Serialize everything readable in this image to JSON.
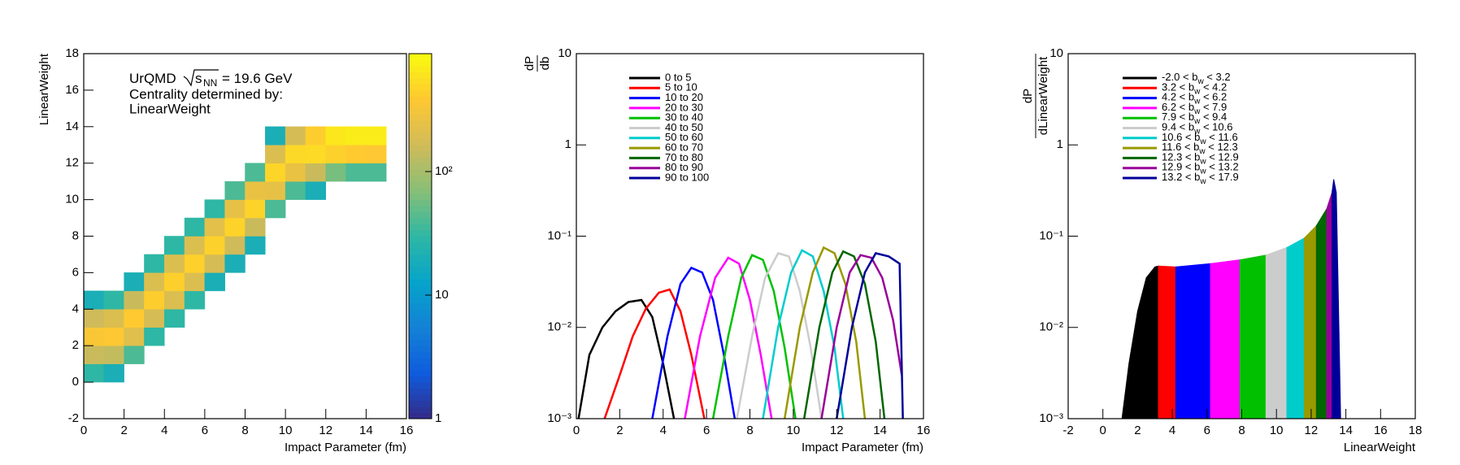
{
  "chart_data": [
    {
      "type": "heatmap",
      "xlabel": "Impact Parameter (fm)",
      "ylabel": "LinearWeight",
      "xlim": [
        0,
        16
      ],
      "xticks": [
        0,
        2,
        4,
        6,
        8,
        10,
        12,
        14,
        16
      ],
      "ylim": [
        -2,
        18
      ],
      "yticks": [
        -2,
        0,
        2,
        4,
        6,
        8,
        10,
        12,
        14,
        16,
        18
      ],
      "zlog": true,
      "zlim": [
        1,
        900
      ],
      "zticks": [
        1,
        10,
        {
          "value": 100,
          "label": "10²"
        }
      ],
      "palette": [
        "#352a87",
        "#0f5cdd",
        "#1481d6",
        "#06a4ca",
        "#2eb7a4",
        "#87bf77",
        "#d1bb59",
        "#fec832",
        "#f9fb0e"
      ],
      "label_system": "UrQMD",
      "label_energy_symbol": "s",
      "label_energy_sub": "NN",
      "label_energy_value": "= 19.6 GeV",
      "label_lines": [
        "Centrality determined by:",
        "LinearWeight"
      ],
      "columns": [
        {
          "x": [
            0,
            1
          ],
          "y": [
            0,
            5
          ],
          "z": [
            30,
            150,
            350,
            160,
            20
          ]
        },
        {
          "x": [
            1,
            2
          ],
          "y": [
            0,
            5
          ],
          "z": [
            20,
            140,
            380,
            200,
            30
          ]
        },
        {
          "x": [
            2,
            3
          ],
          "y": [
            1,
            6
          ],
          "z": [
            40,
            220,
            400,
            150,
            20
          ]
        },
        {
          "x": [
            3,
            4
          ],
          "y": [
            2,
            7
          ],
          "z": [
            30,
            180,
            420,
            200,
            30
          ]
        },
        {
          "x": [
            4,
            5
          ],
          "y": [
            3,
            8
          ],
          "z": [
            30,
            200,
            430,
            200,
            30
          ]
        },
        {
          "x": [
            5,
            6
          ],
          "y": [
            4,
            9
          ],
          "z": [
            30,
            200,
            440,
            200,
            30
          ]
        },
        {
          "x": [
            6,
            7
          ],
          "y": [
            5,
            10
          ],
          "z": [
            20,
            180,
            450,
            230,
            30
          ]
        },
        {
          "x": [
            7,
            8
          ],
          "y": [
            6,
            11
          ],
          "z": [
            20,
            160,
            460,
            250,
            40
          ]
        },
        {
          "x": [
            8,
            9
          ],
          "y": [
            7,
            12
          ],
          "z": [
            20,
            150,
            460,
            260,
            40
          ]
        },
        {
          "x": [
            9,
            10
          ],
          "y": [
            9,
            14
          ],
          "z": [
            40,
            250,
            480,
            200,
            20
          ]
        },
        {
          "x": [
            10,
            11
          ],
          "y": [
            10,
            14
          ],
          "z": [
            40,
            260,
            500,
            180
          ]
        },
        {
          "x": [
            11,
            12
          ],
          "y": [
            10,
            14
          ],
          "z": [
            20,
            150,
            520,
            420
          ]
        },
        {
          "x": [
            12,
            13
          ],
          "y": [
            11,
            14
          ],
          "z": [
            60,
            450,
            650
          ]
        },
        {
          "x": [
            13,
            14
          ],
          "y": [
            11,
            14
          ],
          "z": [
            40,
            400,
            700
          ]
        },
        {
          "x": [
            14,
            15
          ],
          "y": [
            11,
            14
          ],
          "z": [
            40,
            380,
            700
          ]
        }
      ]
    },
    {
      "type": "line",
      "xlabel": "Impact Parameter (fm)",
      "ylabel": {
        "numerator": "dP",
        "denominator": "db"
      },
      "xlim": [
        0,
        16
      ],
      "xticks": [
        0,
        2,
        4,
        6,
        8,
        10,
        12,
        14,
        16
      ],
      "ylog": true,
      "ylim": [
        0.001,
        10
      ],
      "yticks": [
        {
          "value": 0.001,
          "label": "10⁻³"
        },
        {
          "value": 0.01,
          "label": "10⁻²"
        },
        {
          "value": 0.1,
          "label": "10⁻¹"
        },
        1,
        10
      ],
      "series": [
        {
          "name": "0 to 5",
          "color": "#000000",
          "x": [
            0.1,
            0.6,
            1.2,
            1.8,
            2.4,
            3,
            3.5,
            4,
            4.5
          ],
          "values": [
            0.001,
            0.005,
            0.01,
            0.015,
            0.019,
            0.02,
            0.013,
            0.004,
            0.001
          ]
        },
        {
          "name": "5 to 10",
          "color": "#ff0000",
          "x": [
            1.3,
            2,
            2.6,
            3.2,
            3.8,
            4.3,
            4.8,
            5.3,
            5.9
          ],
          "values": [
            0.001,
            0.003,
            0.008,
            0.016,
            0.024,
            0.026,
            0.015,
            0.005,
            0.001
          ]
        },
        {
          "name": "10 to 20",
          "color": "#0000ff",
          "x": [
            3.5,
            4.2,
            4.8,
            5.3,
            5.8,
            6.3,
            6.8,
            7.3
          ],
          "values": [
            0.001,
            0.008,
            0.03,
            0.045,
            0.04,
            0.02,
            0.005,
            0.001
          ]
        },
        {
          "name": "20 to 30",
          "color": "#ff00ff",
          "x": [
            5,
            5.7,
            6.4,
            7,
            7.5,
            8,
            8.5,
            9
          ],
          "values": [
            0.001,
            0.008,
            0.035,
            0.058,
            0.05,
            0.02,
            0.005,
            0.001
          ]
        },
        {
          "name": "30 to 40",
          "color": "#00c000",
          "x": [
            6.3,
            7,
            7.6,
            8.1,
            8.6,
            9.1,
            9.6,
            10.1
          ],
          "values": [
            0.001,
            0.008,
            0.035,
            0.062,
            0.055,
            0.025,
            0.006,
            0.001
          ]
        },
        {
          "name": "40 to 50",
          "color": "#cccccc",
          "x": [
            7.4,
            8.1,
            8.7,
            9.3,
            9.8,
            10.3,
            10.8,
            11.3
          ],
          "values": [
            0.001,
            0.008,
            0.035,
            0.065,
            0.06,
            0.025,
            0.006,
            0.001
          ]
        },
        {
          "name": "50 to 60",
          "color": "#00cccc",
          "x": [
            8.6,
            9.3,
            9.9,
            10.4,
            10.9,
            11.4,
            11.9,
            12.3
          ],
          "values": [
            0.001,
            0.01,
            0.04,
            0.07,
            0.06,
            0.025,
            0.006,
            0.001
          ]
        },
        {
          "name": "60 to 70",
          "color": "#999900",
          "x": [
            9.6,
            10.3,
            10.9,
            11.4,
            11.9,
            12.4,
            12.9,
            13.3
          ],
          "values": [
            0.001,
            0.01,
            0.04,
            0.075,
            0.065,
            0.03,
            0.007,
            0.001
          ]
        },
        {
          "name": "70 to 80",
          "color": "#006600",
          "x": [
            10.5,
            11.2,
            11.8,
            12.3,
            12.8,
            13.3,
            13.8,
            14.2
          ],
          "values": [
            0.001,
            0.01,
            0.04,
            0.068,
            0.06,
            0.03,
            0.007,
            0.001
          ]
        },
        {
          "name": "80 to 90",
          "color": "#990099",
          "x": [
            11.3,
            12,
            12.6,
            13.1,
            13.6,
            14.1,
            14.6,
            15
          ],
          "values": [
            0.001,
            0.01,
            0.04,
            0.062,
            0.058,
            0.035,
            0.012,
            0.003
          ]
        },
        {
          "name": "90 to 100",
          "color": "#000099",
          "x": [
            12,
            12.7,
            13.3,
            13.8,
            14.4,
            14.9,
            15.05
          ],
          "values": [
            0.001,
            0.01,
            0.04,
            0.065,
            0.06,
            0.05,
            0.001
          ]
        }
      ]
    },
    {
      "type": "area",
      "xlabel": "LinearWeight",
      "ylabel": {
        "numerator": "dP",
        "denominator": "dLinearWeight"
      },
      "xlim": [
        -2,
        18
      ],
      "xticks": [
        -2,
        0,
        2,
        4,
        6,
        8,
        10,
        12,
        14,
        16,
        18
      ],
      "ylog": true,
      "ylim": [
        0.001,
        10
      ],
      "yticks": [
        {
          "value": 0.001,
          "label": "10⁻³"
        },
        {
          "value": 0.01,
          "label": "10⁻²"
        },
        {
          "value": 0.1,
          "label": "10⁻¹"
        },
        1,
        10
      ],
      "series": [
        {
          "name": [
            "-2.0 < b",
            "w",
            " < 3.2"
          ],
          "color": "#000000",
          "x": [
            1.1,
            1.5,
            2,
            2.5,
            3,
            3.2
          ],
          "values": [
            0.001,
            0.004,
            0.015,
            0.035,
            0.046,
            0.047
          ]
        },
        {
          "name": [
            "3.2 < b",
            "w",
            " < 4.2"
          ],
          "color": "#ff0000",
          "x": [
            3.2,
            4.2
          ],
          "values": [
            0.047,
            0.046
          ]
        },
        {
          "name": [
            "4.2 < b",
            "w",
            " < 6.2"
          ],
          "color": "#0000ff",
          "x": [
            4.2,
            6.2
          ],
          "values": [
            0.046,
            0.05
          ]
        },
        {
          "name": [
            "6.2 < b",
            "w",
            " < 7.9"
          ],
          "color": "#ff00ff",
          "x": [
            6.2,
            7.9
          ],
          "values": [
            0.05,
            0.055
          ]
        },
        {
          "name": [
            "7.9 < b",
            "w",
            " < 9.4"
          ],
          "color": "#00c000",
          "x": [
            7.9,
            9.4
          ],
          "values": [
            0.055,
            0.062
          ]
        },
        {
          "name": [
            "9.4 < b",
            "w",
            " < 10.6"
          ],
          "color": "#cccccc",
          "x": [
            9.4,
            10.6
          ],
          "values": [
            0.062,
            0.075
          ]
        },
        {
          "name": [
            "10.6 < b",
            "w",
            " < 11.6"
          ],
          "color": "#00cccc",
          "x": [
            10.6,
            11.6
          ],
          "values": [
            0.075,
            0.095
          ]
        },
        {
          "name": [
            "11.6 < b",
            "w",
            " < 12.3"
          ],
          "color": "#999900",
          "x": [
            11.6,
            12.3
          ],
          "values": [
            0.095,
            0.13
          ]
        },
        {
          "name": [
            "12.3 < b",
            "w",
            " < 12.9"
          ],
          "color": "#006600",
          "x": [
            12.3,
            12.9
          ],
          "values": [
            0.13,
            0.2
          ]
        },
        {
          "name": [
            "12.9 < b",
            "w",
            " < 13.2"
          ],
          "color": "#990099",
          "x": [
            12.9,
            13.2
          ],
          "values": [
            0.2,
            0.3
          ]
        },
        {
          "name": [
            "13.2 < b",
            "w",
            " < 17.9"
          ],
          "color": "#000099",
          "x": [
            13.2,
            13.3,
            13.45,
            13.6,
            13.7
          ],
          "values": [
            0.3,
            0.42,
            0.3,
            0.01,
            0.001
          ]
        }
      ]
    }
  ]
}
